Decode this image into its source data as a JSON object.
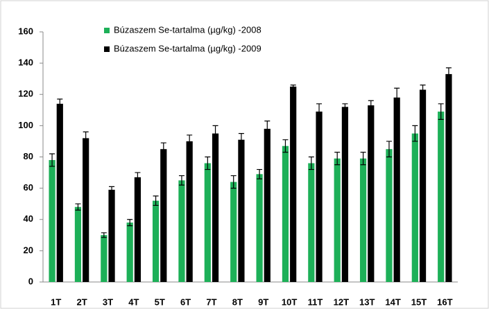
{
  "chart_data": {
    "type": "bar",
    "categories": [
      "1T",
      "2T",
      "3T",
      "4T",
      "5T",
      "6T",
      "7T",
      "8T",
      "9T",
      "10T",
      "11T",
      "12T",
      "13T",
      "14T",
      "15T",
      "16T"
    ],
    "series": [
      {
        "name": "Búzaszem Se-tartalma (µg/kg) -2008",
        "color": "#1db058",
        "values": [
          78,
          48,
          30,
          38,
          52,
          65,
          76,
          64,
          69,
          87,
          76,
          79,
          79,
          85,
          95,
          109
        ],
        "errors": [
          4,
          2,
          1.5,
          2,
          3,
          3,
          4,
          4,
          3,
          4,
          4,
          4,
          4,
          5,
          5,
          5
        ]
      },
      {
        "name": "Búzaszem Se-tartalma (µg/kg) -2009",
        "color": "#000000",
        "values": [
          114,
          92,
          59,
          67,
          85,
          90,
          95,
          91,
          98,
          125,
          109,
          112,
          113,
          118,
          123,
          133
        ],
        "errors": [
          3,
          4,
          2,
          3,
          4,
          4,
          5,
          4,
          5,
          1,
          5,
          2,
          3,
          6,
          3,
          4
        ]
      }
    ],
    "ylim": [
      0,
      160
    ],
    "yticks": [
      0,
      20,
      40,
      60,
      80,
      100,
      120,
      140,
      160
    ],
    "grid": false,
    "legend": "top-left"
  }
}
